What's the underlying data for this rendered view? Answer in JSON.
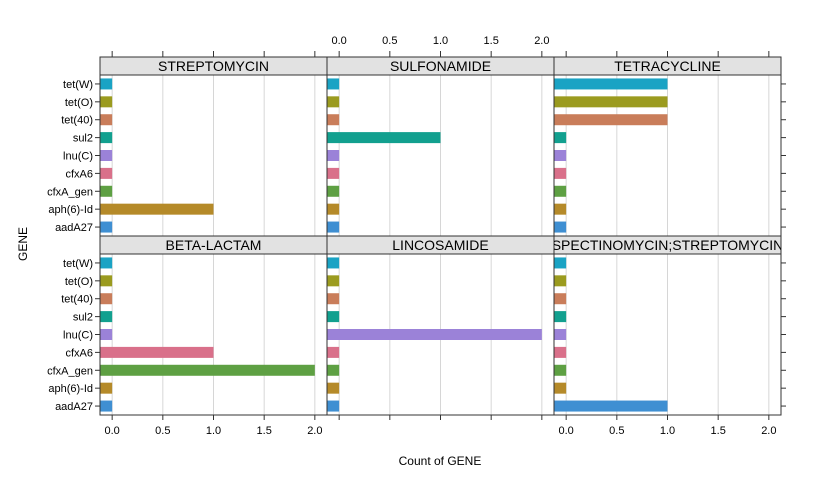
{
  "chart_data": {
    "type": "bar",
    "orientation": "horizontal",
    "xlabel": "Count of GENE",
    "ylabel": "GENE",
    "xlim": [
      -0.12,
      2.12
    ],
    "xticks": [
      0,
      0.5,
      1,
      1.5,
      2
    ],
    "xtick_labels": [
      "0.0",
      "0.5",
      "1.0",
      "1.5",
      "2.0"
    ],
    "grid": true,
    "categories": [
      "tet(W)",
      "tet(O)",
      "tet(40)",
      "sul2",
      "lnu(C)",
      "cfxA6",
      "cfxA_gen",
      "aph(6)-Id",
      "aadA27"
    ],
    "colors": [
      "#1aa3c4",
      "#9b9b1f",
      "#c97d5a",
      "#12a08f",
      "#9b82d8",
      "#d9708a",
      "#5ea043",
      "#b58a29",
      "#3f8fd2"
    ],
    "panels": [
      {
        "title": "STREPTOMYCIN",
        "values": [
          0,
          0,
          0,
          0,
          0,
          0,
          0,
          1,
          0
        ]
      },
      {
        "title": "SULFONAMIDE",
        "values": [
          0,
          0,
          0,
          1,
          0,
          0,
          0,
          0,
          0
        ]
      },
      {
        "title": "TETRACYCLINE",
        "values": [
          1,
          1,
          1,
          0,
          0,
          0,
          0,
          0,
          0
        ]
      },
      {
        "title": "BETA-LACTAM",
        "values": [
          0,
          0,
          0,
          0,
          0,
          1,
          2,
          0,
          0
        ]
      },
      {
        "title": "LINCOSAMIDE",
        "values": [
          0,
          0,
          0,
          0,
          2,
          0,
          0,
          0,
          0
        ]
      },
      {
        "title": "SPECTINOMYCIN;STREPTOMYCIN",
        "values": [
          0,
          0,
          0,
          0,
          0,
          0,
          0,
          0,
          1
        ]
      }
    ]
  }
}
